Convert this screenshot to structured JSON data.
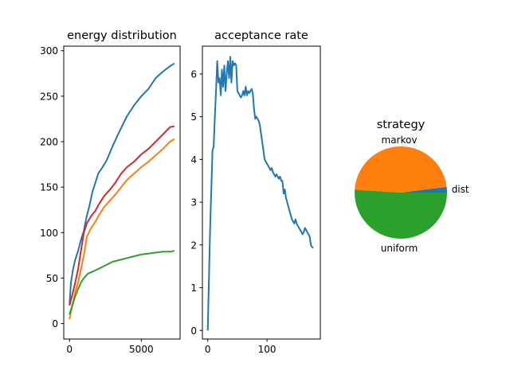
{
  "chart_data": [
    {
      "type": "line",
      "title": "energy distribution",
      "xlim": [
        -400,
        7700
      ],
      "ylim": [
        -17,
        305
      ],
      "xticks": [
        0,
        5000
      ],
      "xtick_labels": [
        "0",
        "5000"
      ],
      "yticks": [
        0,
        50,
        100,
        150,
        200,
        250,
        300
      ],
      "ytick_labels": [
        "0",
        "50",
        "100",
        "150",
        "200",
        "250",
        "300"
      ],
      "series": [
        {
          "color": "#1f77b4",
          "x": [
            0,
            100,
            250,
            400,
            600,
            800,
            1000,
            1200,
            1400,
            1600,
            1800,
            2000,
            2300,
            2600,
            3000,
            3500,
            4000,
            4500,
            5000,
            5500,
            6000,
            6500,
            7000,
            7300
          ],
          "y": [
            20,
            45,
            60,
            70,
            80,
            92,
            102,
            118,
            130,
            145,
            155,
            165,
            172,
            180,
            195,
            212,
            228,
            240,
            250,
            258,
            270,
            277,
            283,
            286
          ]
        },
        {
          "color": "#d62728",
          "x": [
            0,
            200,
            400,
            600,
            800,
            1000,
            1200,
            1500,
            1800,
            2000,
            2400,
            2800,
            3200,
            3600,
            4000,
            4500,
            5000,
            5500,
            6000,
            6500,
            7000,
            7300
          ],
          "y": [
            20,
            32,
            45,
            60,
            80,
            100,
            110,
            118,
            124,
            130,
            140,
            147,
            155,
            165,
            172,
            178,
            186,
            192,
            200,
            208,
            216,
            217
          ]
        },
        {
          "color": "#ff7f0e",
          "x": [
            0,
            200,
            400,
            600,
            800,
            1000,
            1200,
            1500,
            1800,
            2000,
            2400,
            2800,
            3200,
            3600,
            4000,
            4500,
            5000,
            5500,
            6000,
            6500,
            7000,
            7300
          ],
          "y": [
            5,
            20,
            35,
            45,
            60,
            75,
            95,
            105,
            112,
            118,
            128,
            135,
            142,
            150,
            158,
            165,
            172,
            178,
            185,
            192,
            200,
            203
          ]
        },
        {
          "color": "#2ca02c",
          "x": [
            0,
            200,
            400,
            600,
            800,
            1000,
            1300,
            1600,
            2000,
            2500,
            3000,
            3500,
            4000,
            4500,
            5000,
            5500,
            6000,
            6500,
            7000,
            7300
          ],
          "y": [
            10,
            20,
            30,
            38,
            45,
            50,
            55,
            57,
            60,
            64,
            68,
            70,
            72,
            74,
            76,
            77,
            78,
            79,
            79,
            80
          ]
        }
      ]
    },
    {
      "type": "line",
      "title": "acceptance rate",
      "xlim": [
        -9,
        190
      ],
      "ylim": [
        -0.2,
        6.65
      ],
      "xticks": [
        0,
        100
      ],
      "xtick_labels": [
        "0",
        "100"
      ],
      "yticks": [
        0,
        1,
        2,
        3,
        4,
        5,
        6
      ],
      "ytick_labels": [
        "0",
        "1",
        "2",
        "3",
        "4",
        "5",
        "6"
      ],
      "series": [
        {
          "color": "#1f77b4",
          "x": [
            0,
            2,
            4,
            6,
            8,
            10,
            12,
            14,
            16,
            18,
            20,
            22,
            24,
            26,
            28,
            30,
            32,
            34,
            36,
            38,
            40,
            42,
            44,
            46,
            48,
            50,
            52,
            54,
            56,
            58,
            60,
            62,
            64,
            66,
            68,
            70,
            72,
            74,
            76,
            78,
            80,
            82,
            84,
            86,
            88,
            90,
            92,
            94,
            96,
            98,
            100,
            102,
            104,
            106,
            108,
            110,
            112,
            114,
            116,
            118,
            120,
            122,
            124,
            126,
            128,
            130,
            132,
            134,
            136,
            138,
            140,
            142,
            144,
            146,
            148,
            150,
            152,
            154,
            156,
            158,
            160,
            162,
            164,
            166,
            168,
            170,
            172,
            174,
            176,
            178
          ],
          "y": [
            0,
            1.2,
            2.4,
            3.3,
            4.2,
            4.3,
            5.0,
            5.6,
            6.3,
            5.8,
            5.9,
            5.5,
            6.1,
            5.7,
            6.2,
            5.6,
            6.0,
            6.3,
            5.9,
            6.4,
            5.8,
            6.3,
            6.2,
            6.25,
            6.2,
            5.6,
            5.55,
            5.5,
            5.45,
            5.5,
            5.6,
            5.5,
            5.7,
            5.5,
            5.6,
            5.55,
            5.6,
            5.65,
            5.55,
            5.2,
            4.95,
            5.0,
            4.95,
            4.9,
            4.8,
            4.6,
            4.4,
            4.2,
            4.0,
            3.95,
            3.9,
            3.85,
            3.8,
            3.75,
            3.8,
            3.7,
            3.65,
            3.6,
            3.65,
            3.6,
            3.55,
            3.6,
            3.5,
            3.5,
            3.2,
            3.3,
            3.1,
            3.0,
            2.9,
            2.8,
            2.7,
            2.6,
            2.55,
            2.5,
            2.6,
            2.5,
            2.45,
            2.4,
            2.35,
            2.3,
            2.25,
            2.3,
            2.4,
            2.35,
            2.3,
            2.25,
            2.2,
            2.0,
            1.95,
            1.93
          ]
        }
      ]
    },
    {
      "type": "pie",
      "title": "strategy",
      "labels": [
        "dist",
        "markov",
        "uniform"
      ],
      "values": [
        2,
        47,
        51
      ],
      "colors": [
        "#1f77b4",
        "#ff7f0e",
        "#2ca02c"
      ]
    }
  ]
}
